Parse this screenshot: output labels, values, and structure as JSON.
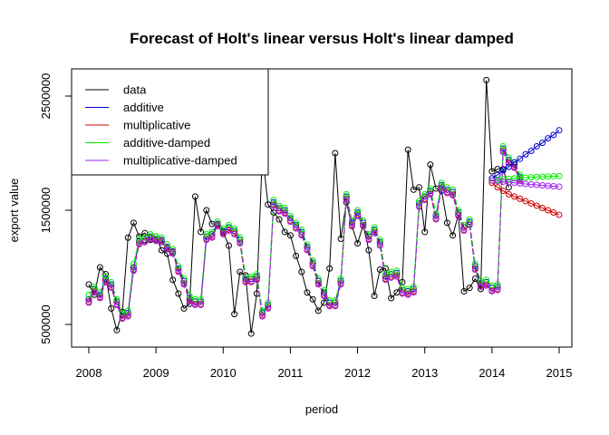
{
  "chart_data": {
    "type": "line",
    "title": "Forecast of Holt's linear versus Holt's linear damped",
    "xlabel": "period",
    "ylabel": "export value",
    "xlim": [
      2008,
      2015
    ],
    "ylim": [
      500000,
      2500000
    ],
    "x_ticks": [
      2008,
      2009,
      2010,
      2011,
      2012,
      2013,
      2014,
      2015
    ],
    "x_tick_labels": [
      "2008",
      "2009",
      "2010",
      "2011",
      "2012",
      "2013",
      "2014",
      "2015"
    ],
    "y_ticks": [
      500000,
      1500000,
      2500000
    ],
    "y_tick_labels": [
      "500000",
      "1500000",
      "2500000"
    ],
    "legend_position": "top-left",
    "legend": [
      {
        "label": "data",
        "color": "#000000"
      },
      {
        "label": "additive",
        "color": "#0000cd"
      },
      {
        "label": "multiplicative",
        "color": "#cd0000"
      },
      {
        "label": "additive-damped",
        "color": "#00ee00"
      },
      {
        "label": "multiplicative-damped",
        "color": "#a020f0"
      }
    ],
    "start": 2008.0,
    "frequency": 12,
    "data": [
      850000,
      760000,
      1000000,
      940000,
      640000,
      450000,
      610000,
      1260000,
      1390000,
      1270000,
      1300000,
      1240000,
      1270000,
      1150000,
      1120000,
      890000,
      770000,
      640000,
      680000,
      1620000,
      1310000,
      1500000,
      1380000,
      1380000,
      1310000,
      1190000,
      590000,
      960000,
      930000,
      420000,
      770000,
      2000000,
      1550000,
      1480000,
      1420000,
      1310000,
      1280000,
      1100000,
      960000,
      780000,
      720000,
      620000,
      690000,
      990000,
      2000000,
      1250000,
      1570000,
      1360000,
      1210000,
      1370000,
      1150000,
      750000,
      980000,
      990000,
      730000,
      780000,
      870000,
      2030000,
      1680000,
      1700000,
      1310000,
      1900000,
      1690000,
      1670000,
      1390000,
      1280000,
      1460000,
      790000,
      820000,
      900000,
      810000,
      2640000,
      1840000,
      1860000,
      1860000,
      1700000
    ],
    "fitted": [
      {
        "name": "additive",
        "values": [
          720000,
          810000,
          760000,
          900000,
          850000,
          700000,
          580000,
          600000,
          1000000,
          1230000,
          1240000,
          1270000,
          1250000,
          1240000,
          1180000,
          1140000,
          990000,
          880000,
          730000,
          700000,
          700000,
          1270000,
          1290000,
          1380000,
          1320000,
          1350000,
          1320000,
          1240000,
          900000,
          900000,
          920000,
          600000,
          670000,
          1570000,
          1520000,
          1500000,
          1430000,
          1370000,
          1310000,
          1180000,
          1040000,
          880000,
          780000,
          690000,
          690000,
          880000,
          1620000,
          1390000,
          1480000,
          1390000,
          1270000,
          1330000,
          1220000,
          920000,
          940000,
          950000,
          800000,
          790000,
          810000,
          1560000,
          1620000,
          1670000,
          1450000,
          1720000,
          1680000,
          1660000,
          1480000,
          1350000,
          1400000,
          1010000,
          860000,
          870000,
          820000,
          830000,
          2040000,
          1940000,
          1900000,
          1790000
        ]
      },
      {
        "name": "multiplicative",
        "values": [
          700000,
          790000,
          740000,
          880000,
          830000,
          680000,
          560000,
          580000,
          980000,
          1210000,
          1230000,
          1260000,
          1240000,
          1230000,
          1170000,
          1130000,
          970000,
          860000,
          710000,
          680000,
          680000,
          1250000,
          1270000,
          1370000,
          1300000,
          1330000,
          1300000,
          1220000,
          880000,
          880000,
          900000,
          580000,
          650000,
          1550000,
          1500000,
          1480000,
          1410000,
          1350000,
          1290000,
          1160000,
          1020000,
          860000,
          760000,
          670000,
          670000,
          860000,
          1600000,
          1370000,
          1460000,
          1370000,
          1250000,
          1310000,
          1200000,
          900000,
          920000,
          930000,
          780000,
          770000,
          790000,
          1540000,
          1600000,
          1650000,
          1430000,
          1700000,
          1660000,
          1640000,
          1460000,
          1330000,
          1380000,
          990000,
          840000,
          850000,
          800000,
          810000,
          2020000,
          1920000,
          1880000,
          1770000
        ]
      },
      {
        "name": "additive-damped",
        "values": [
          760000,
          830000,
          780000,
          920000,
          870000,
          720000,
          600000,
          620000,
          1030000,
          1250000,
          1260000,
          1290000,
          1270000,
          1260000,
          1200000,
          1160000,
          1010000,
          900000,
          750000,
          720000,
          720000,
          1290000,
          1310000,
          1400000,
          1340000,
          1370000,
          1340000,
          1260000,
          920000,
          920000,
          940000,
          620000,
          690000,
          1590000,
          1540000,
          1520000,
          1450000,
          1390000,
          1330000,
          1200000,
          1060000,
          900000,
          800000,
          710000,
          710000,
          900000,
          1640000,
          1410000,
          1500000,
          1410000,
          1290000,
          1350000,
          1240000,
          940000,
          960000,
          970000,
          820000,
          810000,
          830000,
          1580000,
          1640000,
          1690000,
          1470000,
          1740000,
          1700000,
          1680000,
          1500000,
          1370000,
          1420000,
          1030000,
          880000,
          890000,
          840000,
          850000,
          2060000,
          1960000,
          1920000,
          1810000
        ]
      },
      {
        "name": "multiplicative-damped",
        "values": [
          690000,
          780000,
          730000,
          870000,
          820000,
          670000,
          550000,
          570000,
          970000,
          1200000,
          1220000,
          1250000,
          1230000,
          1220000,
          1160000,
          1120000,
          960000,
          850000,
          700000,
          670000,
          670000,
          1240000,
          1260000,
          1360000,
          1290000,
          1320000,
          1290000,
          1210000,
          870000,
          870000,
          890000,
          570000,
          640000,
          1540000,
          1490000,
          1470000,
          1400000,
          1340000,
          1280000,
          1150000,
          1010000,
          850000,
          750000,
          660000,
          660000,
          850000,
          1590000,
          1360000,
          1450000,
          1360000,
          1240000,
          1300000,
          1190000,
          890000,
          910000,
          920000,
          770000,
          760000,
          780000,
          1530000,
          1590000,
          1640000,
          1420000,
          1690000,
          1650000,
          1630000,
          1450000,
          1320000,
          1370000,
          980000,
          830000,
          840000,
          790000,
          800000,
          2010000,
          1910000,
          1870000,
          1760000
        ]
      }
    ],
    "forecast_start": 2014.0,
    "forecast": [
      {
        "name": "additive",
        "values": [
          1780000,
          1810000,
          1850000,
          1880000,
          1920000,
          1950000,
          1990000,
          2020000,
          2060000,
          2090000,
          2130000,
          2160000,
          2200000
        ]
      },
      {
        "name": "multiplicative",
        "values": [
          1740000,
          1700000,
          1670000,
          1640000,
          1620000,
          1600000,
          1580000,
          1560000,
          1540000,
          1520000,
          1500000,
          1480000,
          1460000
        ]
      },
      {
        "name": "additive-damped",
        "values": [
          1760000,
          1765000,
          1770000,
          1775000,
          1780000,
          1783000,
          1786000,
          1789000,
          1792000,
          1794000,
          1796000,
          1798000,
          1800000
        ]
      },
      {
        "name": "multiplicative-damped",
        "values": [
          1760000,
          1755000,
          1750000,
          1745000,
          1740000,
          1735000,
          1730000,
          1726000,
          1722000,
          1718000,
          1714000,
          1710000,
          1706000
        ]
      }
    ]
  }
}
